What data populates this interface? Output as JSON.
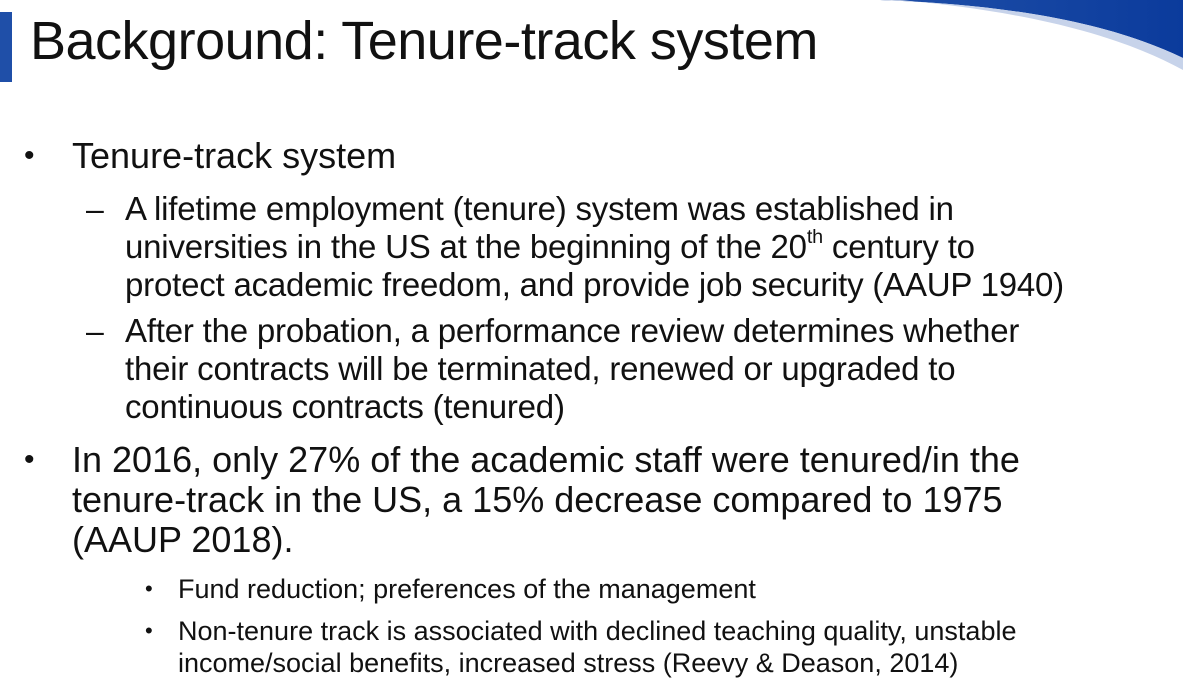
{
  "slide": {
    "title": "Background: Tenure-track system",
    "accent_color": "#1f4fa8",
    "bullets": [
      {
        "text": "Tenure-track system",
        "sub": [
          {
            "lines": [
              "A lifetime employment (tenure) system was established in",
              "universities in the US at the beginning of the 20",
              "th",
              " century to",
              "protect academic freedom, and provide job security (AAUP 1940)"
            ]
          },
          {
            "lines": [
              "After the probation, a performance review determines whether",
              "their contracts will be terminated, renewed or upgraded to",
              "continuous contracts (tenured)"
            ]
          }
        ]
      },
      {
        "lines": [
          "In 2016, only 27% of the academic staff were tenured/in the",
          "tenure-track in the US, a 15% decrease compared to 1975",
          "(AAUP 2018)."
        ],
        "sub": [
          {
            "lines": [
              "Fund reduction; preferences of the management"
            ]
          },
          {
            "lines": [
              "Non-tenure track is associated with declined teaching quality, unstable",
              "income/social benefits, increased stress (Reevy & Deason, 2014)"
            ]
          }
        ]
      }
    ],
    "bullet_symbols": {
      "level1": "•",
      "level2": "–",
      "level3": "•"
    }
  }
}
